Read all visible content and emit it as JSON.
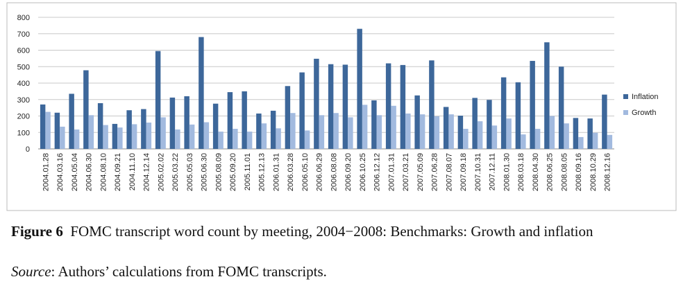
{
  "chart_data": {
    "type": "bar",
    "categories": [
      "2004.01.28",
      "2004.03.16",
      "2004.05.04",
      "2004.06.30",
      "2004.08.10",
      "2004.09.21",
      "2004.11.10",
      "2004.12.14",
      "2005.02.02",
      "2005.03.22",
      "2005.05.03",
      "2005.06.30",
      "2005.08.09",
      "2005.09.20",
      "2005.11.01",
      "2005.12.13",
      "2006.01.31",
      "2006.03.28",
      "2006.05.10",
      "2006.06.29",
      "2006.08.08",
      "2006.09.20",
      "2006.10.25",
      "2006.12.12",
      "2007.01.31",
      "2007.03.21",
      "2007.05.09",
      "2007.06.28",
      "2007.08.07",
      "2007.09.18",
      "2007.10.31",
      "2007.12.11",
      "2008.01.30",
      "2008.03.18",
      "2008.04.30",
      "2008.06.25",
      "2008.08.05",
      "2008.09.16",
      "2008.10.29",
      "2008.12.16"
    ],
    "series": [
      {
        "name": "Inflation",
        "color": "#3d679a",
        "values": [
          270,
          220,
          335,
          478,
          278,
          152,
          235,
          242,
          595,
          312,
          320,
          680,
          275,
          345,
          350,
          215,
          232,
          382,
          465,
          548,
          515,
          512,
          730,
          295,
          520,
          510,
          325,
          538,
          255,
          202,
          310,
          298,
          435,
          405,
          535,
          648,
          500,
          188,
          185,
          330
        ]
      },
      {
        "name": "Growth",
        "color": "#a2badf",
        "values": [
          225,
          135,
          118,
          205,
          145,
          130,
          150,
          160,
          192,
          118,
          148,
          162,
          105,
          122,
          105,
          155,
          125,
          218,
          112,
          205,
          218,
          192,
          268,
          205,
          262,
          215,
          210,
          198,
          210,
          122,
          168,
          142,
          185,
          88,
          122,
          200,
          155,
          72,
          98,
          85
        ]
      }
    ],
    "ylim": [
      0,
      800
    ],
    "yticks": [
      0,
      100,
      200,
      300,
      400,
      500,
      600,
      700,
      800
    ],
    "grid": true,
    "legend": "right"
  },
  "caption": {
    "label": "Figure 6",
    "text": "FOMC transcript word count by meeting, 2004−2008: Benchmarks: Growth and inflation"
  },
  "source": {
    "label": "Source",
    "text": ": Authors’ calculations from FOMC transcripts."
  }
}
